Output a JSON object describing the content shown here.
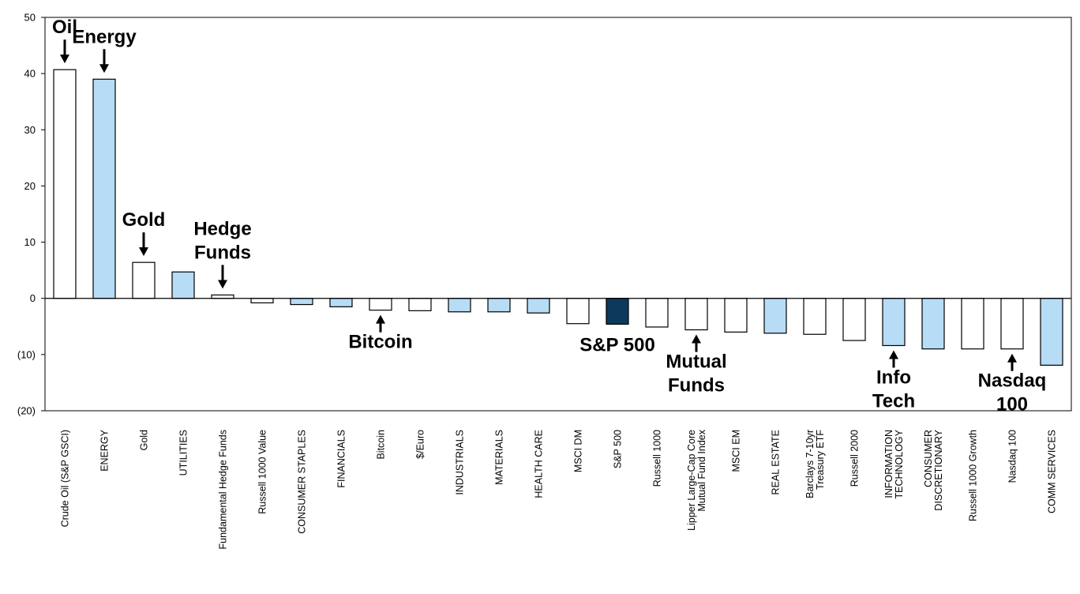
{
  "chart_data": {
    "type": "bar",
    "title": "",
    "xlabel": "",
    "ylabel": "",
    "ylim": [
      -20,
      50
    ],
    "yticks": [
      "50",
      "40",
      "30",
      "20",
      "10",
      "0",
      "(10)",
      "(20)"
    ],
    "grid": false,
    "categories": [
      [
        "Crude Oil (S&P GSCI)"
      ],
      [
        "ENERGY"
      ],
      [
        "Gold"
      ],
      [
        "UTILITIES"
      ],
      [
        "Fundamental Hedge Funds"
      ],
      [
        "Russell 1000 Value"
      ],
      [
        "CONSUMER STAPLES"
      ],
      [
        "FINANCIALS"
      ],
      [
        "Bitcoin"
      ],
      [
        "$/Euro"
      ],
      [
        "INDUSTRIALS"
      ],
      [
        "MATERIALS"
      ],
      [
        "HEALTH CARE"
      ],
      [
        "MSCI DM"
      ],
      [
        "S&P 500"
      ],
      [
        "Russell 1000"
      ],
      [
        "Lipper Large-Cap Core",
        "Mutual Fund Index"
      ],
      [
        "MSCI EM"
      ],
      [
        "REAL ESTATE"
      ],
      [
        "Barclays 7-10yr",
        "Treasury ETF"
      ],
      [
        "Russell 2000"
      ],
      [
        "INFORMATION",
        "TECHNOLOGY"
      ],
      [
        "CONSUMER",
        "DISCRETIONARY"
      ],
      [
        "Russell 1000 Growth"
      ],
      [
        "Nasdaq 100"
      ],
      [
        "COMM SERVICES"
      ]
    ],
    "values": [
      40.7,
      39.0,
      6.4,
      4.7,
      0.6,
      -0.8,
      -1.1,
      -1.5,
      -2.1,
      -2.2,
      -2.4,
      -2.4,
      -2.6,
      -4.5,
      -4.6,
      -5.1,
      -5.6,
      -6.0,
      -6.2,
      -6.4,
      -7.5,
      -8.4,
      -9.0,
      -9.0,
      -9.0,
      -11.9
    ],
    "bar_kinds": [
      "white",
      "blue",
      "white",
      "blue",
      "white",
      "white",
      "blue",
      "blue",
      "white",
      "white",
      "blue",
      "blue",
      "blue",
      "white",
      "navy",
      "white",
      "white",
      "white",
      "blue",
      "white",
      "white",
      "blue",
      "blue",
      "white",
      "white",
      "blue"
    ],
    "colors": {
      "white": "#ffffff",
      "blue": "#b7dcf5",
      "navy": "#0d3a5c",
      "stroke": "#000000"
    },
    "annotations": [
      {
        "lines": [
          "Oil"
        ],
        "bar": 0,
        "dir": "down"
      },
      {
        "lines": [
          "Energy"
        ],
        "bar": 1,
        "dir": "down"
      },
      {
        "lines": [
          "Gold"
        ],
        "bar": 2,
        "dir": "down"
      },
      {
        "lines": [
          "Hedge",
          "Funds"
        ],
        "bar": 4,
        "dir": "down"
      },
      {
        "lines": [
          "Bitcoin"
        ],
        "bar": 8,
        "dir": "up"
      },
      {
        "lines": [
          "S&P 500"
        ],
        "bar": 14,
        "dir": "none"
      },
      {
        "lines": [
          "Mutual",
          "Funds"
        ],
        "bar": 16,
        "dir": "up"
      },
      {
        "lines": [
          "Info",
          "Tech"
        ],
        "bar": 21,
        "dir": "up"
      },
      {
        "lines": [
          "Nasdaq",
          "100"
        ],
        "bar": 24,
        "dir": "up"
      }
    ]
  }
}
